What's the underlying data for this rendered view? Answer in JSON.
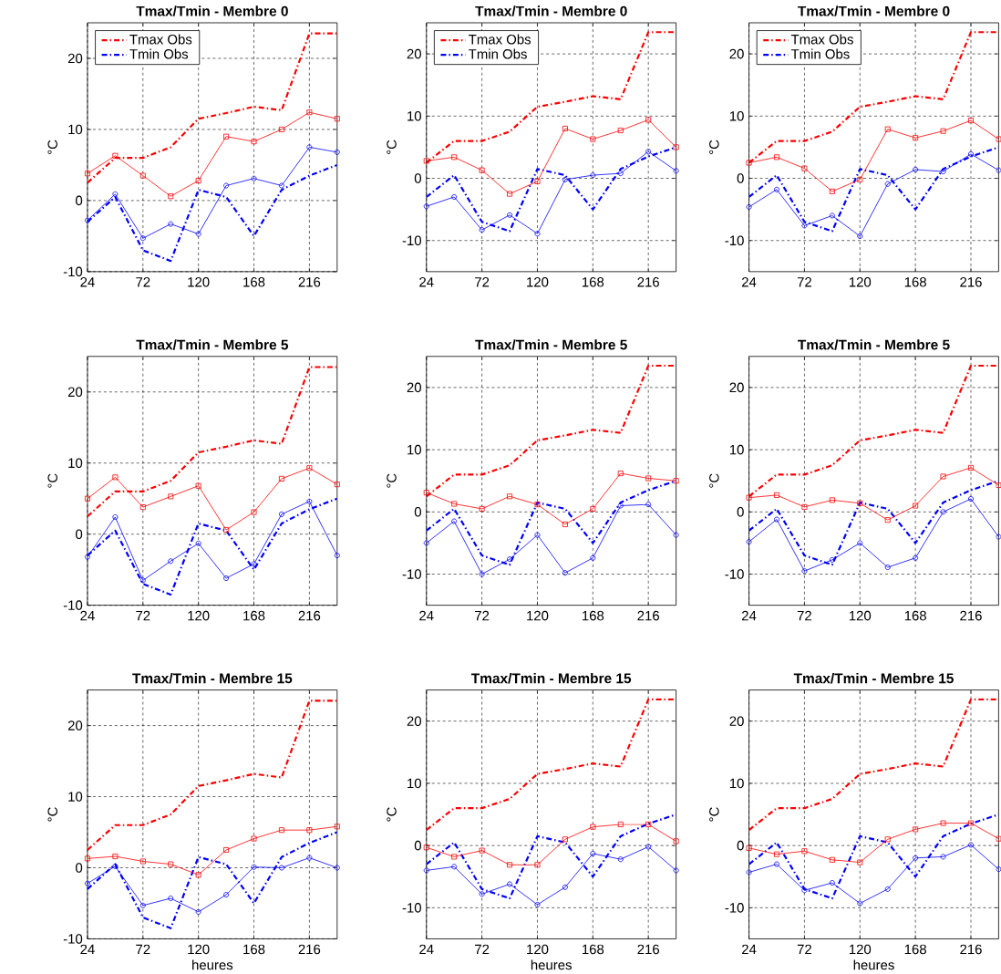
{
  "chart_data": [
    {
      "type": "line",
      "title": "Tmax/Tmin - Membre 0",
      "ylabel": "°C",
      "x": [
        24,
        48,
        72,
        96,
        120,
        144,
        168,
        192,
        216,
        240
      ],
      "xlim": [
        24,
        240
      ],
      "ylim": [
        -10,
        25
      ],
      "xticks": [
        24,
        72,
        120,
        168,
        216
      ],
      "yticks": [
        -10,
        0,
        10,
        20
      ],
      "grid": true,
      "legend": "top left",
      "series": [
        {
          "name": "Tmax Obs",
          "color": "#ff0000",
          "line_style": "dashdot",
          "marker": "none",
          "values": [
            2.5,
            6,
            6,
            7.5,
            11.5,
            12.3,
            13.2,
            12.7,
            23.5,
            23.5
          ]
        },
        {
          "name": "Tmin Obs",
          "color": "#0000ff",
          "line_style": "dashdot",
          "marker": "none",
          "values": [
            -3,
            0.5,
            -7,
            -8.5,
            1.5,
            0.5,
            -5,
            1.5,
            3.5,
            5
          ]
        },
        {
          "color": "#ff0000",
          "line_style": "solid",
          "marker": "square",
          "values": [
            3.8,
            6.3,
            3.5,
            0.6,
            2.8,
            9,
            8.3,
            10,
            12.4,
            11.5
          ]
        },
        {
          "color": "#0000ff",
          "line_style": "solid",
          "marker": "circle",
          "values": [
            -2.8,
            0.9,
            -5.3,
            -3.3,
            -4.7,
            2.1,
            3.1,
            2.1,
            7.5,
            6.8
          ]
        }
      ]
    },
    {
      "type": "line",
      "title": "Tmax/Tmin - Membre 0",
      "ylabel": "°C",
      "x": [
        24,
        48,
        72,
        96,
        120,
        144,
        168,
        192,
        216,
        240
      ],
      "xlim": [
        24,
        240
      ],
      "ylim": [
        -15,
        25
      ],
      "xticks": [
        24,
        72,
        120,
        168,
        216
      ],
      "yticks": [
        -10,
        0,
        10,
        20
      ],
      "grid": true,
      "legend": "top left",
      "series": [
        {
          "name": "Tmax Obs",
          "color": "#ff0000",
          "line_style": "dashdot",
          "marker": "none",
          "values": [
            2.5,
            6,
            6,
            7.5,
            11.5,
            12.3,
            13.2,
            12.7,
            23.5,
            23.5
          ]
        },
        {
          "name": "Tmin Obs",
          "color": "#0000ff",
          "line_style": "dashdot",
          "marker": "none",
          "values": [
            -3,
            0.5,
            -7,
            -8.5,
            1.5,
            0.5,
            -5,
            1.5,
            3.5,
            5
          ]
        },
        {
          "color": "#ff0000",
          "line_style": "solid",
          "marker": "square",
          "values": [
            2.8,
            3.4,
            1.3,
            -2.5,
            -0.5,
            8,
            6.3,
            7.7,
            9.4,
            5
          ]
        },
        {
          "color": "#0000ff",
          "line_style": "solid",
          "marker": "circle",
          "values": [
            -4.5,
            -3,
            -8.3,
            -5.9,
            -8.9,
            -0.2,
            0.5,
            0.8,
            4.3,
            1.2
          ]
        }
      ]
    },
    {
      "type": "line",
      "title": "Tmax/Tmin - Membre 0",
      "ylabel": "°C",
      "x": [
        24,
        48,
        72,
        96,
        120,
        144,
        168,
        192,
        216,
        240
      ],
      "xlim": [
        24,
        240
      ],
      "ylim": [
        -15,
        25
      ],
      "xticks": [
        24,
        72,
        120,
        168,
        216
      ],
      "yticks": [
        -10,
        0,
        10,
        20
      ],
      "grid": true,
      "legend": "top left",
      "series": [
        {
          "name": "Tmax Obs",
          "color": "#ff0000",
          "line_style": "dashdot",
          "marker": "none",
          "values": [
            2.5,
            6,
            6,
            7.5,
            11.5,
            12.3,
            13.2,
            12.7,
            23.5,
            23.5
          ]
        },
        {
          "name": "Tmin Obs",
          "color": "#0000ff",
          "line_style": "dashdot",
          "marker": "none",
          "values": [
            -3,
            0.5,
            -7,
            -8.5,
            1.5,
            0.5,
            -5,
            1.5,
            3.5,
            5
          ]
        },
        {
          "color": "#ff0000",
          "line_style": "solid",
          "marker": "square",
          "values": [
            2.5,
            3.4,
            1.6,
            -2.1,
            -0.2,
            7.9,
            6.5,
            7.6,
            9.3,
            6.3
          ]
        },
        {
          "color": "#0000ff",
          "line_style": "solid",
          "marker": "circle",
          "values": [
            -4.6,
            -1.8,
            -7.6,
            -6,
            -9.3,
            -0.9,
            1.4,
            1.1,
            3.9,
            1.3
          ]
        }
      ]
    },
    {
      "type": "line",
      "title": "Tmax/Tmin - Membre 5",
      "ylabel": "°C",
      "x": [
        24,
        48,
        72,
        96,
        120,
        144,
        168,
        192,
        216,
        240
      ],
      "xlim": [
        24,
        240
      ],
      "ylim": [
        -10,
        25
      ],
      "xticks": [
        24,
        72,
        120,
        168,
        216
      ],
      "yticks": [
        -10,
        0,
        10,
        20
      ],
      "grid": true,
      "series": [
        {
          "color": "#ff0000",
          "line_style": "dashdot",
          "marker": "none",
          "values": [
            2.5,
            6,
            6,
            7.5,
            11.5,
            12.3,
            13.2,
            12.7,
            23.5,
            23.5
          ]
        },
        {
          "color": "#0000ff",
          "line_style": "dashdot",
          "marker": "none",
          "values": [
            -3,
            0.5,
            -7,
            -8.5,
            1.5,
            0.5,
            -5,
            1.5,
            3.5,
            5
          ]
        },
        {
          "color": "#ff0000",
          "line_style": "solid",
          "marker": "square",
          "values": [
            5,
            8,
            3.8,
            5.3,
            6.8,
            0.6,
            3.1,
            7.8,
            9.3,
            7
          ]
        },
        {
          "color": "#0000ff",
          "line_style": "solid",
          "marker": "circle",
          "values": [
            -3.2,
            2.4,
            -6.5,
            -3.8,
            -1.3,
            -6.2,
            -4.2,
            2.8,
            4.6,
            -3
          ]
        }
      ]
    },
    {
      "type": "line",
      "title": "Tmax/Tmin - Membre 5",
      "ylabel": "°C",
      "x": [
        24,
        48,
        72,
        96,
        120,
        144,
        168,
        192,
        216,
        240
      ],
      "xlim": [
        24,
        240
      ],
      "ylim": [
        -15,
        25
      ],
      "xticks": [
        24,
        72,
        120,
        168,
        216
      ],
      "yticks": [
        -10,
        0,
        10,
        20
      ],
      "grid": true,
      "series": [
        {
          "color": "#ff0000",
          "line_style": "dashdot",
          "marker": "none",
          "values": [
            2.5,
            6,
            6,
            7.5,
            11.5,
            12.3,
            13.2,
            12.7,
            23.5,
            23.5
          ]
        },
        {
          "color": "#0000ff",
          "line_style": "dashdot",
          "marker": "none",
          "values": [
            -3,
            0.5,
            -7,
            -8.5,
            1.5,
            0.5,
            -5,
            1.5,
            3.5,
            5
          ]
        },
        {
          "color": "#ff0000",
          "line_style": "solid",
          "marker": "square",
          "values": [
            3.1,
            1.3,
            0.5,
            2.5,
            1.2,
            -2,
            0.5,
            6.2,
            5.4,
            5
          ]
        },
        {
          "color": "#0000ff",
          "line_style": "solid",
          "marker": "circle",
          "values": [
            -5,
            -1.5,
            -10,
            -7.6,
            -3.7,
            -9.8,
            -7.4,
            1,
            1.2,
            -3.7
          ]
        }
      ]
    },
    {
      "type": "line",
      "title": "Tmax/Tmin - Membre 5",
      "ylabel": "°C",
      "x": [
        24,
        48,
        72,
        96,
        120,
        144,
        168,
        192,
        216,
        240
      ],
      "xlim": [
        24,
        240
      ],
      "ylim": [
        -15,
        25
      ],
      "xticks": [
        24,
        72,
        120,
        168,
        216
      ],
      "yticks": [
        -10,
        0,
        10,
        20
      ],
      "grid": true,
      "series": [
        {
          "color": "#ff0000",
          "line_style": "dashdot",
          "marker": "none",
          "values": [
            2.5,
            6,
            6,
            7.5,
            11.5,
            12.3,
            13.2,
            12.7,
            23.5,
            23.5
          ]
        },
        {
          "color": "#0000ff",
          "line_style": "dashdot",
          "marker": "none",
          "values": [
            -3,
            0.5,
            -7,
            -8.5,
            1.5,
            0.5,
            -5,
            1.5,
            3.5,
            5
          ]
        },
        {
          "color": "#ff0000",
          "line_style": "solid",
          "marker": "square",
          "values": [
            2.3,
            2.7,
            0.8,
            1.9,
            1.4,
            -1.3,
            1,
            5.7,
            7.1,
            4.3
          ]
        },
        {
          "color": "#0000ff",
          "line_style": "solid",
          "marker": "circle",
          "values": [
            -4.8,
            -1.2,
            -9.5,
            -7.7,
            -5,
            -8.9,
            -7.4,
            0,
            2.1,
            -4
          ]
        }
      ]
    },
    {
      "type": "line",
      "title": "Tmax/Tmin - Membre 15",
      "xlabel": "heures",
      "ylabel": "°C",
      "x": [
        24,
        48,
        72,
        96,
        120,
        144,
        168,
        192,
        216,
        240
      ],
      "xlim": [
        24,
        240
      ],
      "ylim": [
        -10,
        25
      ],
      "xticks": [
        24,
        72,
        120,
        168,
        216
      ],
      "yticks": [
        -10,
        0,
        10,
        20
      ],
      "grid": true,
      "series": [
        {
          "color": "#ff0000",
          "line_style": "dashdot",
          "marker": "none",
          "values": [
            2.5,
            6,
            6,
            7.5,
            11.5,
            12.3,
            13.2,
            12.7,
            23.5,
            23.5
          ]
        },
        {
          "color": "#0000ff",
          "line_style": "dashdot",
          "marker": "none",
          "values": [
            -3,
            0.5,
            -7,
            -8.5,
            1.5,
            0.5,
            -5,
            1.5,
            3.5,
            5
          ]
        },
        {
          "color": "#ff0000",
          "line_style": "solid",
          "marker": "square",
          "values": [
            1.3,
            1.6,
            0.9,
            0.5,
            -1,
            2.5,
            4.1,
            5.3,
            5.3,
            5.8
          ]
        },
        {
          "color": "#0000ff",
          "line_style": "solid",
          "marker": "circle",
          "values": [
            -2.2,
            0.2,
            -5.3,
            -4.3,
            -6.2,
            -3.8,
            0.1,
            0,
            1.4,
            0
          ]
        }
      ]
    },
    {
      "type": "line",
      "title": "Tmax/Tmin - Membre 15",
      "xlabel": "heures",
      "ylabel": "°C",
      "x": [
        24,
        48,
        72,
        96,
        120,
        144,
        168,
        192,
        216,
        240
      ],
      "xlim": [
        24,
        240
      ],
      "ylim": [
        -15,
        25
      ],
      "xticks": [
        24,
        72,
        120,
        168,
        216
      ],
      "yticks": [
        -10,
        0,
        10,
        20
      ],
      "grid": true,
      "series": [
        {
          "color": "#ff0000",
          "line_style": "dashdot",
          "marker": "none",
          "values": [
            2.5,
            6,
            6,
            7.5,
            11.5,
            12.3,
            13.2,
            12.7,
            23.5,
            23.5
          ]
        },
        {
          "color": "#0000ff",
          "line_style": "dashdot",
          "marker": "none",
          "values": [
            -3,
            0.5,
            -7,
            -8.5,
            1.5,
            0.5,
            -5,
            1.5,
            3.5,
            5
          ]
        },
        {
          "color": "#ff0000",
          "line_style": "solid",
          "marker": "square",
          "values": [
            -0.3,
            -1.8,
            -0.8,
            -3.1,
            -3.1,
            1,
            3,
            3.4,
            3.4,
            0.7
          ]
        },
        {
          "color": "#0000ff",
          "line_style": "solid",
          "marker": "circle",
          "values": [
            -4,
            -3.4,
            -7.8,
            -6.2,
            -9.5,
            -6.7,
            -1.3,
            -2.2,
            -0.2,
            -4
          ]
        }
      ]
    },
    {
      "type": "line",
      "title": "Tmax/Tmin - Membre 15",
      "xlabel": "heures",
      "ylabel": "°C",
      "x": [
        24,
        48,
        72,
        96,
        120,
        144,
        168,
        192,
        216,
        240
      ],
      "xlim": [
        24,
        240
      ],
      "ylim": [
        -15,
        25
      ],
      "xticks": [
        24,
        72,
        120,
        168,
        216
      ],
      "yticks": [
        -10,
        0,
        10,
        20
      ],
      "grid": true,
      "series": [
        {
          "color": "#ff0000",
          "line_style": "dashdot",
          "marker": "none",
          "values": [
            2.5,
            6,
            6,
            7.5,
            11.5,
            12.3,
            13.2,
            12.7,
            23.5,
            23.5
          ]
        },
        {
          "color": "#0000ff",
          "line_style": "dashdot",
          "marker": "none",
          "values": [
            -3,
            0.5,
            -7,
            -8.5,
            1.5,
            0.5,
            -5,
            1.5,
            3.5,
            5
          ]
        },
        {
          "color": "#ff0000",
          "line_style": "solid",
          "marker": "square",
          "values": [
            -0.4,
            -1.4,
            -0.9,
            -2.3,
            -2.7,
            1,
            2.6,
            3.6,
            3.6,
            1.1
          ]
        },
        {
          "color": "#0000ff",
          "line_style": "solid",
          "marker": "circle",
          "values": [
            -4.3,
            -3,
            -7.2,
            -6,
            -9.3,
            -7,
            -2,
            -1.8,
            0.1,
            -3.8
          ]
        }
      ]
    }
  ]
}
